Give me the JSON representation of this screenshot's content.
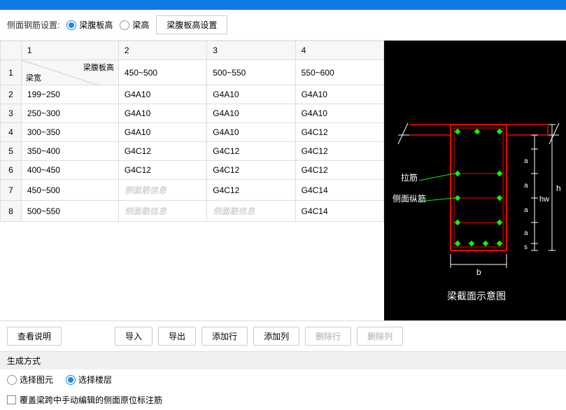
{
  "toolbar": {
    "label": "侧面钢筋设置:",
    "opt1": "梁腹板高",
    "opt2": "梁高",
    "settings_btn": "梁腹板高设置"
  },
  "table": {
    "diag_top": "梁腹板高",
    "diag_bot": "梁宽",
    "col_headers": [
      "1",
      "2",
      "3",
      "4"
    ],
    "range_headers": [
      "450~500",
      "500~550",
      "550~600"
    ],
    "rows": [
      {
        "n": "2",
        "h": "199~250",
        "c": [
          "G4A10",
          "G4A10",
          "G4A10"
        ]
      },
      {
        "n": "3",
        "h": "250~300",
        "c": [
          "G4A10",
          "G4A10",
          "G4A10"
        ]
      },
      {
        "n": "4",
        "h": "300~350",
        "c": [
          "G4A10",
          "G4A10",
          "G4C12"
        ]
      },
      {
        "n": "5",
        "h": "350~400",
        "c": [
          "G4C12",
          "G4C12",
          "G4C12"
        ]
      },
      {
        "n": "6",
        "h": "400~450",
        "c": [
          "G4C12",
          "G4C12",
          "G4C12"
        ]
      },
      {
        "n": "7",
        "h": "450~500",
        "c": [
          "侧面筋信息",
          "G4C12",
          "G4C14"
        ],
        "ph": [
          true,
          false,
          false
        ]
      },
      {
        "n": "8",
        "h": "500~550",
        "c": [
          "侧面筋信息",
          "侧面筋信息",
          "G4C14"
        ],
        "ph": [
          true,
          true,
          false
        ]
      }
    ]
  },
  "diagram": {
    "lbl_lajin": "拉筋",
    "lbl_cemian": "侧面纵筋",
    "lbl_b": "b",
    "lbl_h": "h",
    "lbl_hw": "hw",
    "lbl_a": "a",
    "lbl_s": "s",
    "title": "梁截面示意图"
  },
  "buttons": {
    "view_desc": "查看说明",
    "import": "导入",
    "export": "导出",
    "add_row": "添加行",
    "add_col": "添加列",
    "del_row": "删除行",
    "del_col": "删除列"
  },
  "gen": {
    "header": "生成方式",
    "opt1": "选择图元",
    "opt2": "选择楼层",
    "checkbox": "覆盖梁跨中手动编辑的侧面原位标注筋"
  }
}
